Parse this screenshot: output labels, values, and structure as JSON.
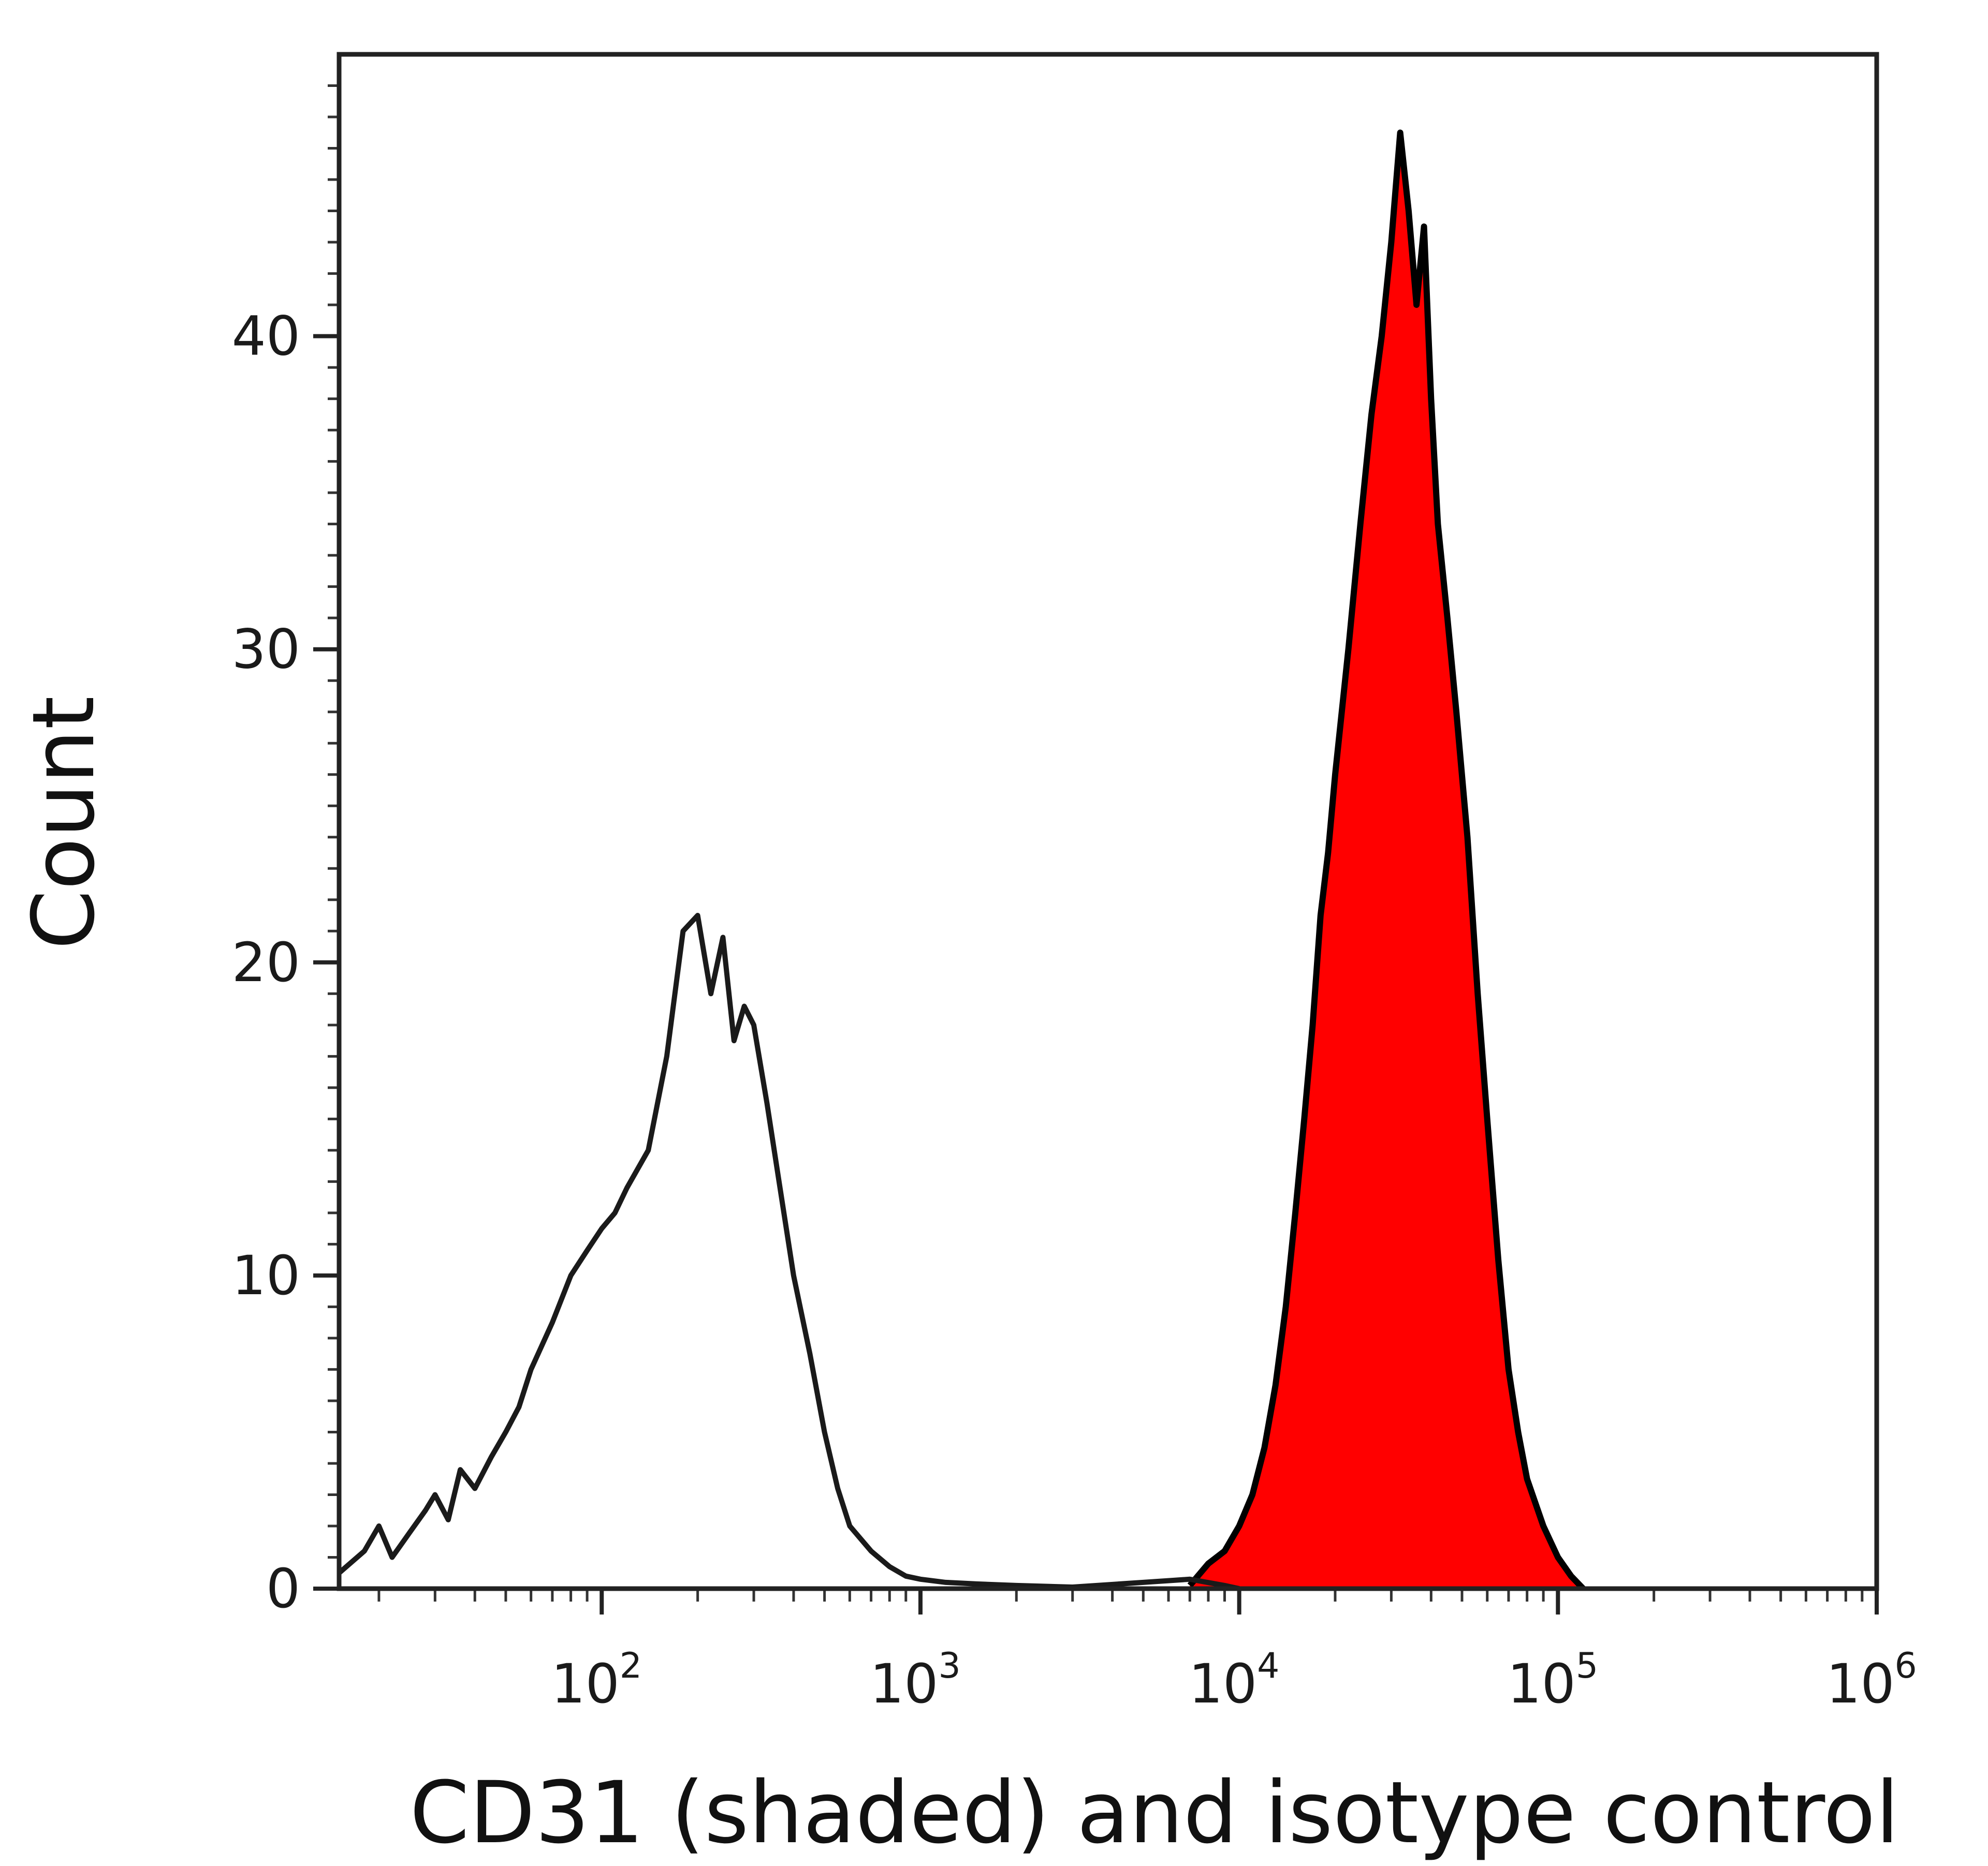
{
  "chart_data": {
    "type": "area",
    "title": "",
    "xlabel": "CD31 (shaded) and isotype control",
    "ylabel": "Count",
    "x_scale": "log",
    "xlim": [
      15,
      1000000
    ],
    "ylim": [
      0,
      49
    ],
    "grid": false,
    "legend": "none",
    "x_ticks": [
      {
        "value": 100,
        "base": "10",
        "exp": "2"
      },
      {
        "value": 1000,
        "base": "10",
        "exp": "3"
      },
      {
        "value": 10000,
        "base": "10",
        "exp": "4"
      },
      {
        "value": 100000,
        "base": "10",
        "exp": "5"
      },
      {
        "value": 1000000,
        "base": "10",
        "exp": "6"
      }
    ],
    "y_ticks": [
      "0",
      "10",
      "20",
      "30",
      "40"
    ],
    "series": [
      {
        "style": "outline",
        "color": "#1a1a1a",
        "x": [
          15,
          18,
          20,
          22,
          25,
          28,
          30,
          33,
          36,
          40,
          45,
          50,
          55,
          60,
          70,
          80,
          90,
          100,
          110,
          120,
          140,
          160,
          180,
          200,
          220,
          240,
          260,
          280,
          300,
          330,
          360,
          400,
          450,
          500,
          550,
          600,
          700,
          800,
          900,
          1000,
          1200,
          1500,
          2000,
          3000,
          5000,
          7000,
          9000,
          10000
        ],
        "y": [
          0.5,
          1.2,
          2.0,
          1.0,
          1.8,
          2.5,
          3.0,
          2.2,
          3.8,
          3.2,
          4.2,
          5.0,
          5.8,
          7.0,
          8.5,
          10.0,
          10.8,
          11.5,
          12.0,
          12.8,
          14.0,
          17.0,
          21.0,
          21.5,
          19.0,
          20.8,
          17.5,
          18.6,
          18.0,
          15.5,
          13.0,
          10.0,
          7.5,
          5.0,
          3.2,
          2.0,
          1.2,
          0.7,
          0.4,
          0.3,
          0.2,
          0.15,
          0.1,
          0.05,
          0.2,
          0.3,
          0.1,
          0.0
        ]
      },
      {
        "style": "filled",
        "color": "#ff0000",
        "x": [
          7000,
          8000,
          9000,
          10000,
          11000,
          12000,
          13000,
          14000,
          15000,
          16000,
          17000,
          18000,
          19000,
          20000,
          22000,
          24000,
          26000,
          28000,
          30000,
          32000,
          34000,
          36000,
          38000,
          40000,
          42000,
          45000,
          48000,
          52000,
          56000,
          60000,
          65000,
          70000,
          75000,
          80000,
          90000,
          100000,
          110000,
          120000
        ],
        "y": [
          0.1,
          0.8,
          1.2,
          2.0,
          3.0,
          4.5,
          6.5,
          9.0,
          12.0,
          15.0,
          18.0,
          21.5,
          23.5,
          26.0,
          30.0,
          34.0,
          37.5,
          40.0,
          43.0,
          46.5,
          44.0,
          41.0,
          43.5,
          38.0,
          34.0,
          31.0,
          28.0,
          24.0,
          19.0,
          15.0,
          10.5,
          7.0,
          5.0,
          3.5,
          2.0,
          1.0,
          0.4,
          0.0
        ]
      }
    ]
  }
}
